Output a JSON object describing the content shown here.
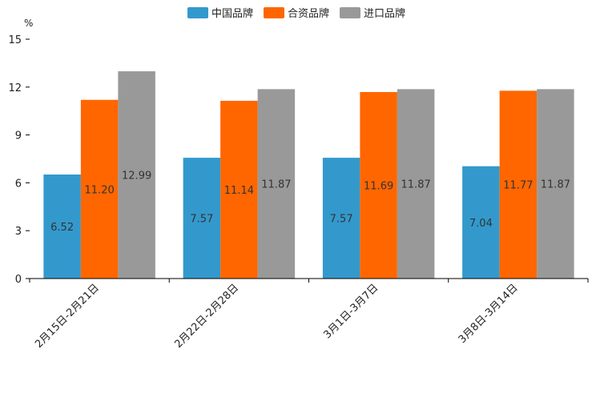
{
  "chart_data": {
    "type": "bar",
    "title": "",
    "xlabel": "",
    "ylabel": "%",
    "ylim": [
      0,
      15
    ],
    "yticks": [
      0,
      3,
      6,
      9,
      12,
      15
    ],
    "grid": false,
    "legend_position": "top-center",
    "categories": [
      "2月15日-2月21日",
      "2月22日-2月28日",
      "3月1日-3月7日",
      "3月8日-3月14日"
    ],
    "series": [
      {
        "name": "中国品牌",
        "color": "#3399cc",
        "values": [
          6.52,
          7.57,
          7.57,
          7.04
        ],
        "labels": [
          "6.52",
          "7.57",
          "7.57",
          "7.04"
        ]
      },
      {
        "name": "合资品牌",
        "color": "#ff6600",
        "values": [
          11.2,
          11.14,
          11.69,
          11.77
        ],
        "labels": [
          "11.20",
          "11.14",
          "11.69",
          "11.77"
        ]
      },
      {
        "name": "进口品牌",
        "color": "#999999",
        "values": [
          12.99,
          11.87,
          11.87,
          11.87
        ],
        "labels": [
          "12.99",
          "11.87",
          "11.87",
          "11.87"
        ]
      }
    ]
  }
}
